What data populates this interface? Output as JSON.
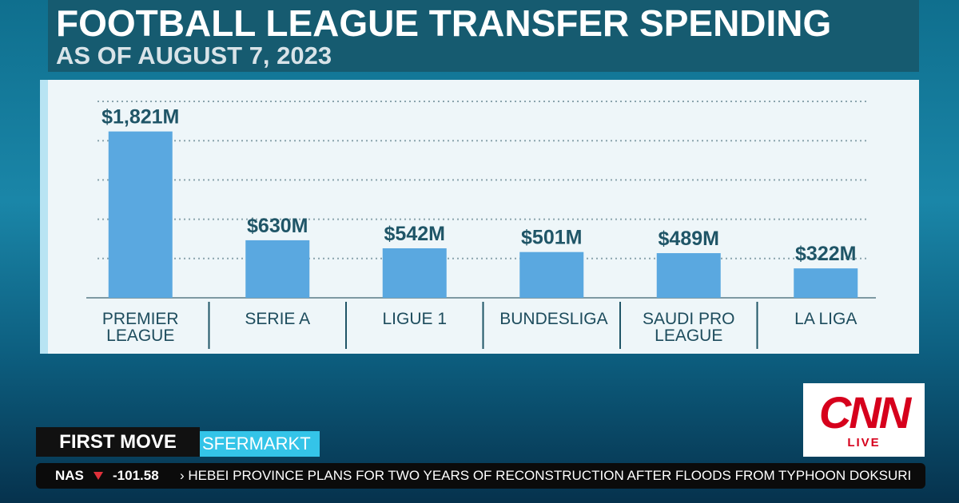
{
  "chart_data": {
    "type": "bar",
    "title": "FOOTBALL LEAGUE TRANSFER SPENDING",
    "subtitle": "AS OF AUGUST 7, 2023",
    "categories": [
      "PREMIER LEAGUE",
      "SERIE A",
      "LIGUE 1",
      "BUNDESLIGA",
      "SAUDI PRO LEAGUE",
      "LA LIGA"
    ],
    "values": [
      1821,
      630,
      542,
      501,
      489,
      322
    ],
    "value_labels": [
      "$1,821M",
      "$630M",
      "$542M",
      "$501M",
      "$489M",
      "$322M"
    ],
    "color": "#5aa8e0",
    "ylim": [
      0,
      2150
    ],
    "grid": true
  },
  "show": {
    "name": "FIRST MOVE",
    "source": "SFERMARKT"
  },
  "network": {
    "logo": "CNN",
    "status": "LIVE"
  },
  "ticker": {
    "index": "NAS",
    "change": "-101.58",
    "headline": "› HEBEI PROVINCE PLANS FOR TWO YEARS OF RECONSTRUCTION AFTER FLOODS FROM TYPHOON DOKSURI"
  }
}
